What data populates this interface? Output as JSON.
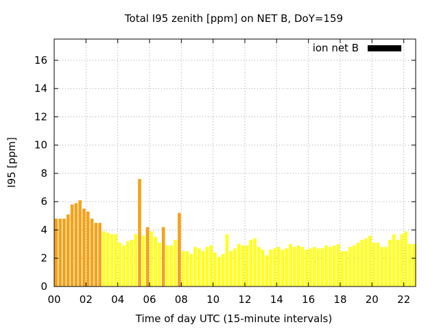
{
  "chart_data": {
    "type": "bar",
    "title": "Total I95 zenith [ppm] on NET B, DoY=159",
    "xlabel": "Time of day UTC (15-minute intervals)",
    "ylabel": "I95 [ppm]",
    "xlim": [
      0,
      22.75
    ],
    "ylim": [
      0,
      17.5
    ],
    "x_ticks": [
      "00",
      "02",
      "04",
      "06",
      "08",
      "10",
      "12",
      "14",
      "16",
      "18",
      "20",
      "22"
    ],
    "y_ticks": [
      "0",
      "2",
      "4",
      "6",
      "8",
      "10",
      "12",
      "14",
      "16"
    ],
    "grid": true,
    "legend": {
      "position": "top-right",
      "label": "ion net B",
      "color": "#000000"
    },
    "interval_hours": 0.25,
    "colors": {
      "high": "#f5a219",
      "normal": "#ffff1f"
    },
    "series": [
      {
        "values": [
          4.8,
          4.8,
          4.8,
          5.1,
          5.8,
          5.9,
          6.1,
          5.5,
          5.3,
          4.8,
          4.5,
          4.5,
          3.9,
          3.8,
          3.7,
          3.7,
          3.1,
          2.9,
          3.2,
          3.3,
          3.7,
          7.6,
          3.6,
          4.2,
          3.9,
          3.5,
          3.1,
          4.2,
          2.9,
          2.9,
          3.3,
          5.2,
          2.5,
          2.5,
          2.3,
          2.8,
          2.7,
          2.5,
          2.8,
          2.9,
          2.4,
          2.1,
          2.3,
          3.7,
          2.5,
          2.7,
          3.0,
          2.9,
          2.9,
          3.3,
          3.4,
          2.8,
          2.6,
          2.2,
          2.6,
          2.7,
          2.8,
          2.6,
          2.7,
          3.0,
          2.8,
          2.9,
          2.8,
          2.6,
          2.7,
          2.8,
          2.7,
          2.7,
          2.9,
          2.8,
          2.9,
          3.0,
          2.5,
          2.5,
          2.8,
          2.9,
          3.1,
          3.3,
          3.4,
          3.6,
          3.1,
          3.1,
          2.8,
          2.8,
          3.3,
          3.7,
          3.3,
          3.7,
          3.9,
          3.0,
          3.0
        ],
        "colors": [
          "high",
          "high",
          "high",
          "high",
          "high",
          "high",
          "high",
          "high",
          "high",
          "high",
          "high",
          "high",
          "normal",
          "normal",
          "normal",
          "normal",
          "normal",
          "normal",
          "normal",
          "normal",
          "normal",
          "high",
          "normal",
          "high",
          "normal",
          "normal",
          "normal",
          "high",
          "normal",
          "normal",
          "normal",
          "high",
          "normal",
          "normal",
          "normal",
          "normal",
          "normal",
          "normal",
          "normal",
          "normal",
          "normal",
          "normal",
          "normal",
          "normal",
          "normal",
          "normal",
          "normal",
          "normal",
          "normal",
          "normal",
          "normal",
          "normal",
          "normal",
          "normal",
          "normal",
          "normal",
          "normal",
          "normal",
          "normal",
          "normal",
          "normal",
          "normal",
          "normal",
          "normal",
          "normal",
          "normal",
          "normal",
          "normal",
          "normal",
          "normal",
          "normal",
          "normal",
          "normal",
          "normal",
          "normal",
          "normal",
          "normal",
          "normal",
          "normal",
          "normal",
          "normal",
          "normal",
          "normal",
          "normal",
          "normal",
          "normal",
          "normal",
          "normal",
          "normal",
          "normal",
          "normal"
        ]
      }
    ]
  }
}
